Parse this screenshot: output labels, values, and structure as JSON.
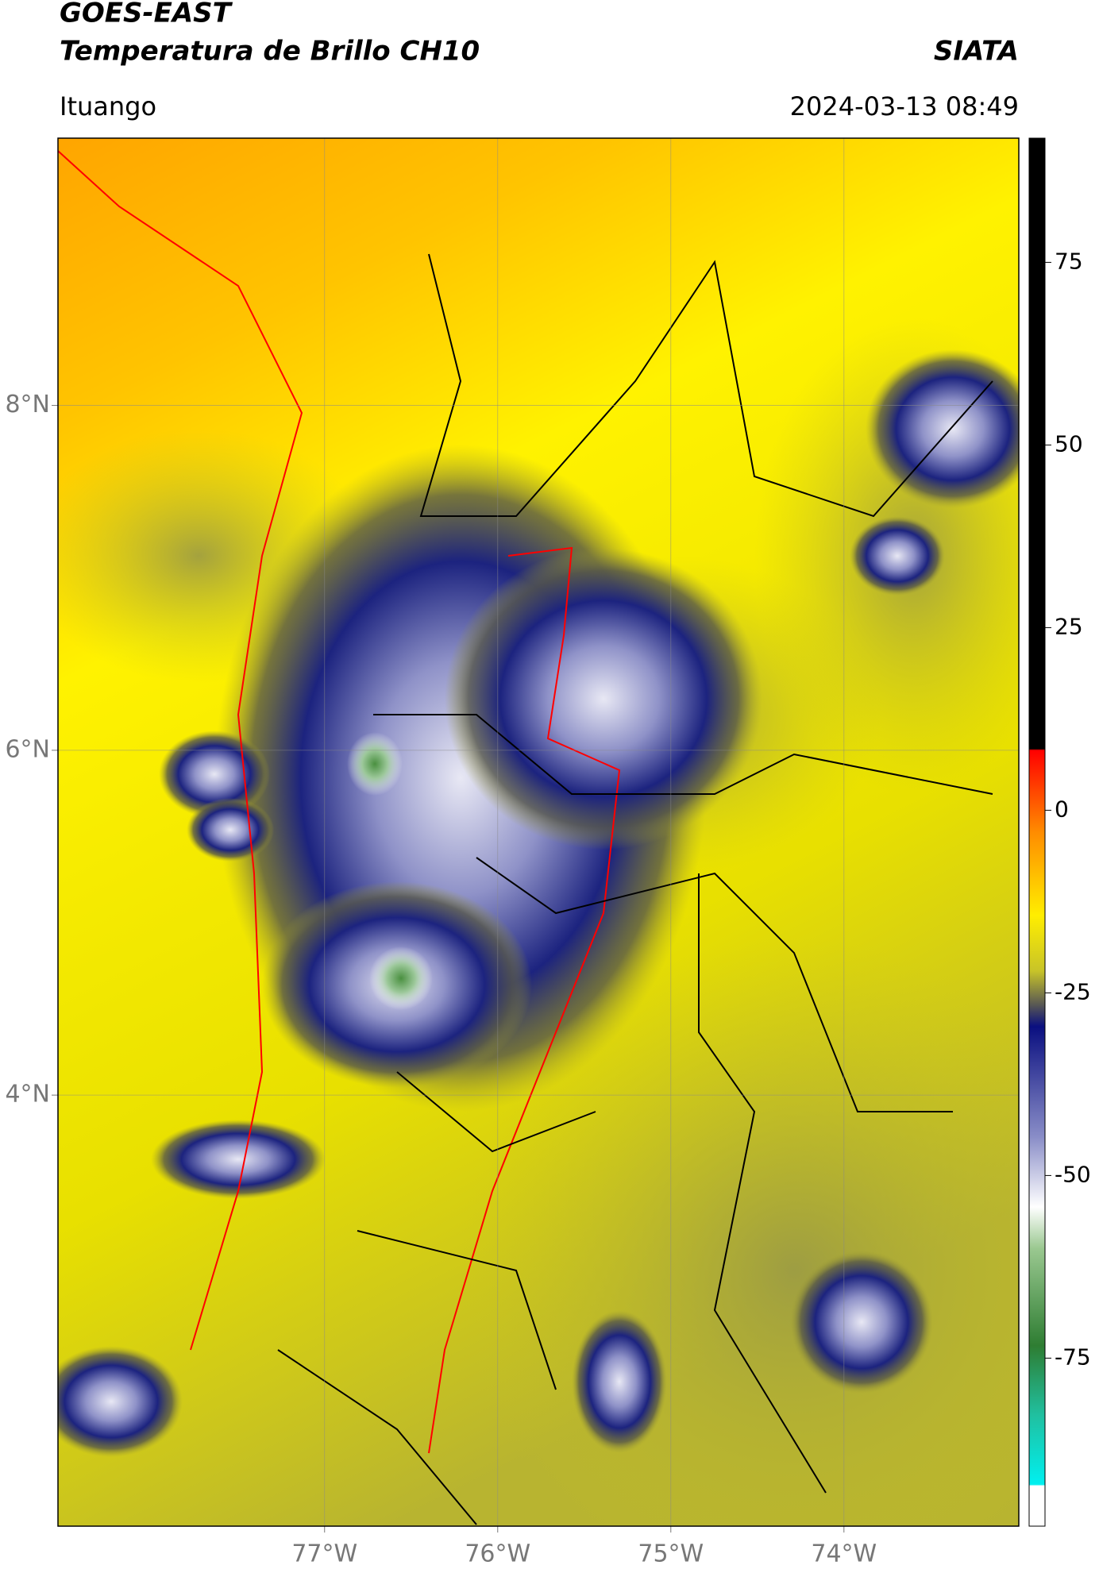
{
  "header": {
    "title": "GOES-EAST",
    "subtitle": "Temperatura de Brillo CH10",
    "source": "SIATA",
    "location": "Ituango",
    "datetime": "2024-03-13 08:49"
  },
  "map": {
    "xlim": [
      -78.54,
      -72.99
    ],
    "ylim": [
      1.5,
      9.55
    ],
    "grid": true,
    "xticks": [
      {
        "value": -77,
        "label": "77°W"
      },
      {
        "value": -76,
        "label": "76°W"
      },
      {
        "value": -75,
        "label": "75°W"
      },
      {
        "value": -74,
        "label": "74°W"
      }
    ],
    "yticks": [
      {
        "value": 8,
        "label": "8°N"
      },
      {
        "value": 6,
        "label": "6°N"
      },
      {
        "value": 4,
        "label": "4°N"
      }
    ]
  },
  "colorbar": {
    "lim": [
      -98,
      92
    ],
    "ticks": [
      75,
      50,
      25,
      0,
      -25,
      -50,
      -75
    ]
  }
}
